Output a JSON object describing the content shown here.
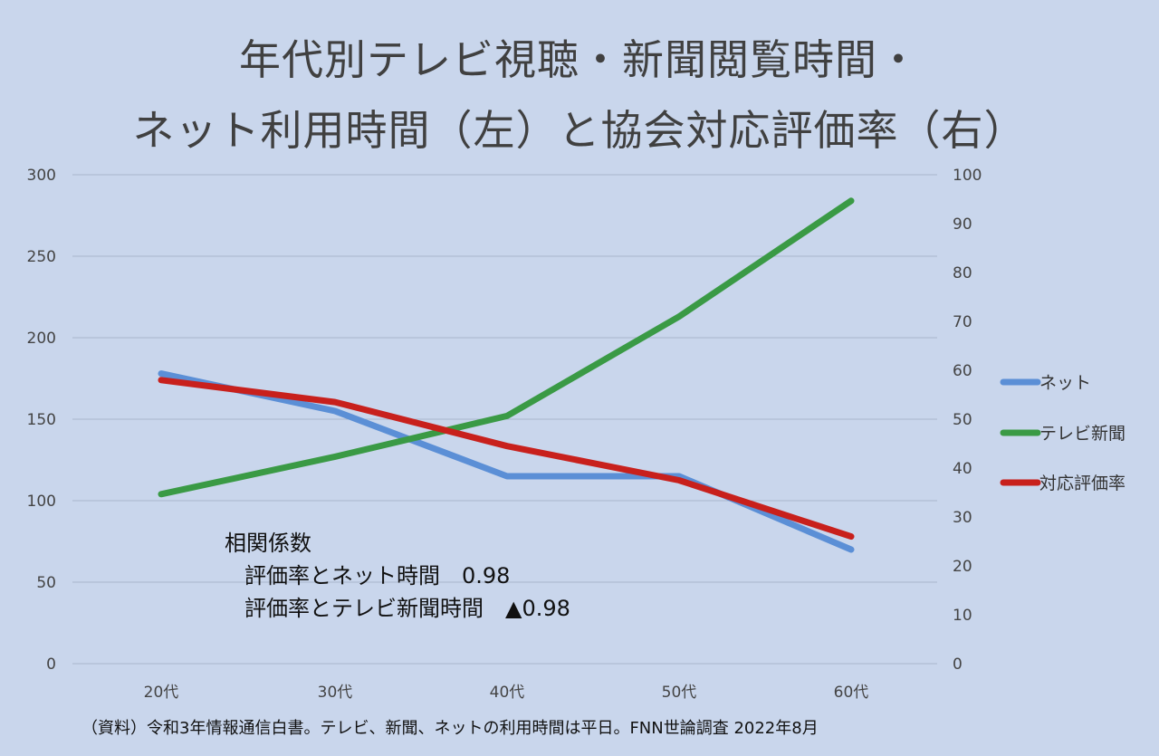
{
  "title_line1": "年代別テレビ視聴・新聞閲覧時間・",
  "title_line2": "ネット利用時間（左）と協会対応評価率（右）",
  "chart_data": {
    "type": "line",
    "categories": [
      "20代",
      "30代",
      "40代",
      "50代",
      "60代"
    ],
    "left_axis": {
      "ylim": [
        0,
        300
      ],
      "ticks": [
        "0",
        "50",
        "100",
        "150",
        "200",
        "250",
        "300"
      ]
    },
    "right_axis": {
      "ylim": [
        0,
        100
      ],
      "ticks": [
        "0",
        "10",
        "20",
        "30",
        "40",
        "50",
        "60",
        "70",
        "80",
        "90",
        "100"
      ]
    },
    "series": [
      {
        "name": "ネット",
        "axis": "left",
        "color": "#5b8fd6",
        "values": [
          178,
          155,
          115,
          115,
          70
        ]
      },
      {
        "name": "テレビ新聞",
        "axis": "left",
        "color": "#3a9a45",
        "values": [
          104,
          127,
          152,
          213,
          284
        ]
      },
      {
        "name": "対応評価率",
        "axis": "right",
        "color": "#c8201c",
        "values": [
          58,
          53.5,
          44.5,
          37.5,
          26
        ]
      }
    ],
    "legend_position": "right",
    "grid": true
  },
  "note": {
    "heading": "相関係数",
    "line1": "評価率とネット時間　0.98",
    "line2": "評価率とテレビ新聞時間　▲0.98"
  },
  "source": "（資料）令和3年情報通信白書。テレビ、新聞、ネットの利用時間は平日。FNN世論調査 2022年8月"
}
